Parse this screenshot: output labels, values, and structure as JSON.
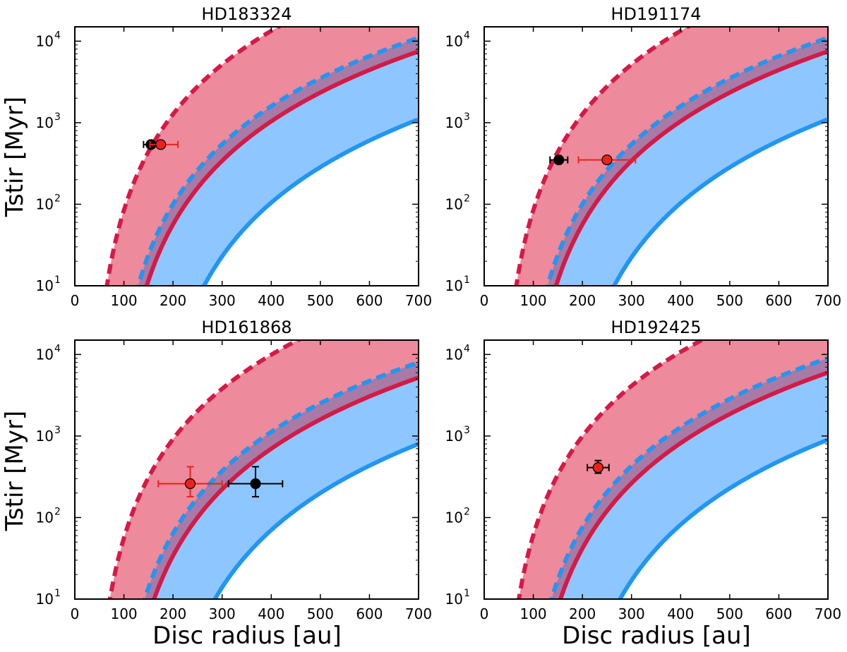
{
  "figure": {
    "ylabel": "Tstir [Myr]",
    "xlabel": "Disc radius [au]"
  },
  "colors": {
    "red_line": "#d41a46",
    "red_fill": "#ed8a9b",
    "blue_line": "#2196f3",
    "blue_fill": "#8ec6ff",
    "overlap_fill": "#a87aa5",
    "observed_point": "#000000",
    "model_point": "#e8231d"
  },
  "chart_data": [
    {
      "type": "line",
      "title": "HD183324",
      "xlim": [
        0,
        700
      ],
      "ylim": [
        10,
        15000
      ],
      "yscale": "log",
      "x_ticks": [
        "0",
        "100",
        "200",
        "300",
        "400",
        "500",
        "600",
        "700"
      ],
      "y_ticks": [
        "10^1",
        "10^2",
        "10^3",
        "10^4"
      ],
      "curves": {
        "red_dashed": {
          "r0": 32,
          "t_at_700": 80000
        },
        "blue_dashed": {
          "r0": 68,
          "t_at_700": 11000
        },
        "red_solid": {
          "r0": 78,
          "t_at_700": 7500
        },
        "blue_solid": {
          "r0": 148,
          "t_at_700": 1100
        }
      },
      "points": [
        {
          "series": "observed",
          "x": 155,
          "y": 540,
          "xerr": [
            15,
            15
          ],
          "yerr": [
            0,
            0
          ]
        },
        {
          "series": "model",
          "x": 175,
          "y": 540,
          "xerr": [
            22,
            35
          ],
          "yerr": [
            0,
            0
          ]
        }
      ]
    },
    {
      "type": "line",
      "title": "HD191174",
      "xlim": [
        0,
        700
      ],
      "ylim": [
        10,
        15000
      ],
      "yscale": "log",
      "x_ticks": [
        "0",
        "100",
        "200",
        "300",
        "400",
        "500",
        "600",
        "700"
      ],
      "y_ticks": [
        "10^1",
        "10^2",
        "10^3",
        "10^4"
      ],
      "curves": {
        "red_dashed": {
          "r0": 32,
          "t_at_700": 80000
        },
        "blue_dashed": {
          "r0": 68,
          "t_at_700": 11000
        },
        "red_solid": {
          "r0": 78,
          "t_at_700": 7500
        },
        "blue_solid": {
          "r0": 150,
          "t_at_700": 1100
        }
      },
      "points": [
        {
          "series": "observed",
          "x": 152,
          "y": 350,
          "xerr": [
            18,
            18
          ],
          "yerr": [
            0,
            0
          ]
        },
        {
          "series": "model",
          "x": 250,
          "y": 350,
          "xerr": [
            58,
            58
          ],
          "yerr": [
            0,
            0
          ]
        }
      ]
    },
    {
      "type": "line",
      "title": "HD161868",
      "xlim": [
        0,
        700
      ],
      "ylim": [
        10,
        15000
      ],
      "yscale": "log",
      "x_ticks": [
        "0",
        "100",
        "200",
        "300",
        "400",
        "500",
        "600",
        "700"
      ],
      "y_ticks": [
        "10^1",
        "10^2",
        "10^3",
        "10^4"
      ],
      "curves": {
        "red_dashed": {
          "r0": 35,
          "t_at_700": 60000
        },
        "blue_dashed": {
          "r0": 75,
          "t_at_700": 8000
        },
        "red_solid": {
          "r0": 85,
          "t_at_700": 5200
        },
        "blue_solid": {
          "r0": 160,
          "t_at_700": 800
        }
      },
      "points": [
        {
          "series": "model",
          "x": 235,
          "y": 260,
          "xerr": [
            65,
            65
          ],
          "yerr": [
            80,
            160
          ]
        },
        {
          "series": "observed",
          "x": 368,
          "y": 260,
          "xerr": [
            55,
            55
          ],
          "yerr": [
            80,
            160
          ]
        }
      ]
    },
    {
      "type": "line",
      "title": "HD192425",
      "xlim": [
        0,
        700
      ],
      "ylim": [
        10,
        15000
      ],
      "yscale": "log",
      "x_ticks": [
        "0",
        "100",
        "200",
        "300",
        "400",
        "500",
        "600",
        "700"
      ],
      "y_ticks": [
        "10^1",
        "10^2",
        "10^3",
        "10^4"
      ],
      "curves": {
        "red_dashed": {
          "r0": 35,
          "t_at_700": 65000
        },
        "blue_dashed": {
          "r0": 72,
          "t_at_700": 9000
        },
        "red_solid": {
          "r0": 82,
          "t_at_700": 6000
        },
        "blue_solid": {
          "r0": 155,
          "t_at_700": 900
        }
      },
      "points": [
        {
          "series": "observed",
          "x": 232,
          "y": 410,
          "xerr": [
            22,
            22
          ],
          "yerr": [
            60,
            90
          ]
        },
        {
          "series": "model",
          "x": 232,
          "y": 410,
          "xerr": [
            0,
            0
          ],
          "yerr": [
            0,
            0
          ]
        }
      ]
    }
  ]
}
